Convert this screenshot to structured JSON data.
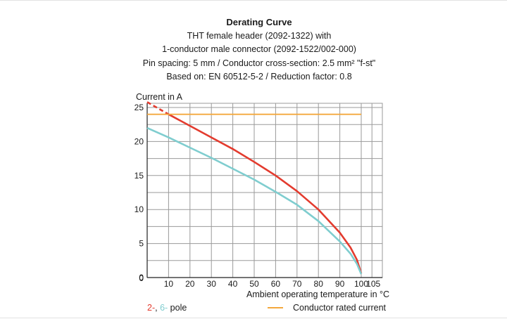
{
  "header": {
    "title": "Derating Curve",
    "lines": [
      "THT female header (2092-1322) with",
      "1-conductor male connector (2092-1522/002-000)",
      "Pin spacing: 5 mm / Conductor cross-section: 2.5 mm² \"f-st\"",
      "Based on: EN 60512-5-2 / Reduction factor: 0.8"
    ]
  },
  "legend": {
    "pole_2": "2-",
    "pole_sep": ", ",
    "pole_6": "6-",
    "pole_suffix": " pole",
    "rated": "Conductor rated current"
  },
  "colors": {
    "pole_2": "#e33b2e",
    "pole_6": "#7fcdcf",
    "rated": "#f4a83c",
    "grid": "#9a9a9a"
  },
  "chart_data": {
    "type": "line",
    "xlabel": "Ambient operating temperature in °C",
    "ylabel": "Current in A",
    "xlim": [
      0,
      105
    ],
    "ylim": [
      0,
      26
    ],
    "x_ticks": [
      0,
      10,
      20,
      30,
      40,
      50,
      60,
      70,
      80,
      90,
      100,
      105
    ],
    "y_ticks": [
      0,
      5,
      10,
      15,
      20,
      25
    ],
    "grid": true,
    "series": [
      {
        "name": "2-pole",
        "color": "#e33b2e",
        "dashed_until_x": 10,
        "x": [
          0,
          10,
          20,
          30,
          40,
          50,
          60,
          70,
          80,
          90,
          95,
          98,
          100
        ],
        "y": [
          25.8,
          24.0,
          22.3,
          20.6,
          18.9,
          17.0,
          15.0,
          12.7,
          10.0,
          6.6,
          4.4,
          2.6,
          0.6
        ]
      },
      {
        "name": "6-pole",
        "color": "#7fcdcf",
        "x": [
          0,
          10,
          20,
          30,
          40,
          50,
          60,
          70,
          80,
          90,
          95,
          98,
          100
        ],
        "y": [
          22.0,
          20.6,
          19.1,
          17.6,
          16.0,
          14.4,
          12.6,
          10.7,
          8.3,
          5.3,
          3.5,
          2.0,
          0.5
        ]
      },
      {
        "name": "Conductor rated current",
        "color": "#f4a83c",
        "x": [
          0,
          100
        ],
        "y": [
          24.0,
          24.0
        ]
      }
    ]
  }
}
